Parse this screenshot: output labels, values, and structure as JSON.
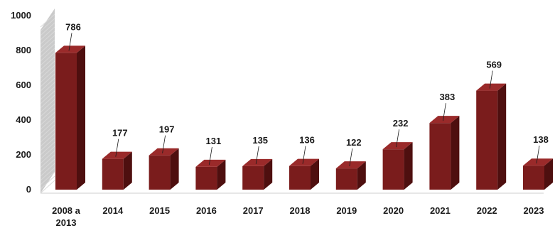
{
  "chart_data": {
    "type": "bar",
    "title": "",
    "xlabel": "",
    "ylabel": "",
    "categories": [
      "2008 a 2013",
      "2014",
      "2015",
      "2016",
      "2017",
      "2018",
      "2019",
      "2020",
      "2021",
      "2022",
      "2023"
    ],
    "category_lines": [
      [
        "2008 a",
        "2013"
      ],
      [
        "2014"
      ],
      [
        "2015"
      ],
      [
        "2016"
      ],
      [
        "2017"
      ],
      [
        "2018"
      ],
      [
        "2019"
      ],
      [
        "2020"
      ],
      [
        "2021"
      ],
      [
        "2022"
      ],
      [
        "2023"
      ]
    ],
    "values": [
      786,
      177,
      197,
      131,
      135,
      136,
      122,
      232,
      383,
      569,
      138
    ],
    "value_labels": [
      "786",
      "177",
      "197",
      "131",
      "135",
      "136",
      "122",
      "232",
      "383",
      "569",
      "138"
    ],
    "ylim": [
      0,
      1000
    ],
    "yticks": [
      "0",
      "200",
      "400",
      "600",
      "800",
      "1000"
    ],
    "style": "3d",
    "grid": false,
    "legend": "none",
    "colors": {
      "bar_front": "#7a1c1c",
      "bar_side": "#4e0f0f",
      "bar_top": "#9a2a2a",
      "back_wall": "#b8b8b8",
      "wall_stripe": "#d9d9d9"
    }
  }
}
